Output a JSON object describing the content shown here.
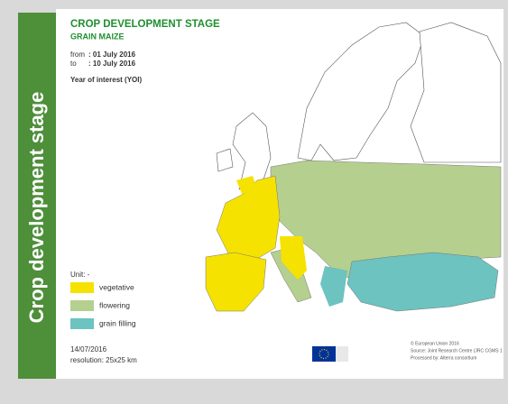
{
  "side_title": "Crop development stage",
  "map": {
    "title": "CROP DEVELOPMENT STAGE",
    "subtitle": "GRAIN MAIZE",
    "period": {
      "from_label": "from",
      "from": ": 01 July 2016",
      "to_label": "to",
      "to": ": 10 July 2016"
    },
    "year_label": "Year of interest (YOI)",
    "legend": {
      "unit": "Unit: -",
      "items": [
        {
          "label": "vegetative",
          "color": "#f5e200"
        },
        {
          "label": "flowering",
          "color": "#b5cf8f"
        },
        {
          "label": "grain filling",
          "color": "#6cc3bf"
        }
      ]
    },
    "footer": {
      "date": "14/07/2016",
      "resolution": "resolution: 25x25 km",
      "copyright": "© European Union 2016",
      "source": "Source: Joint Research Centre (JRC CGMS 1",
      "processed": "Processed by: Alterra consortium"
    }
  }
}
